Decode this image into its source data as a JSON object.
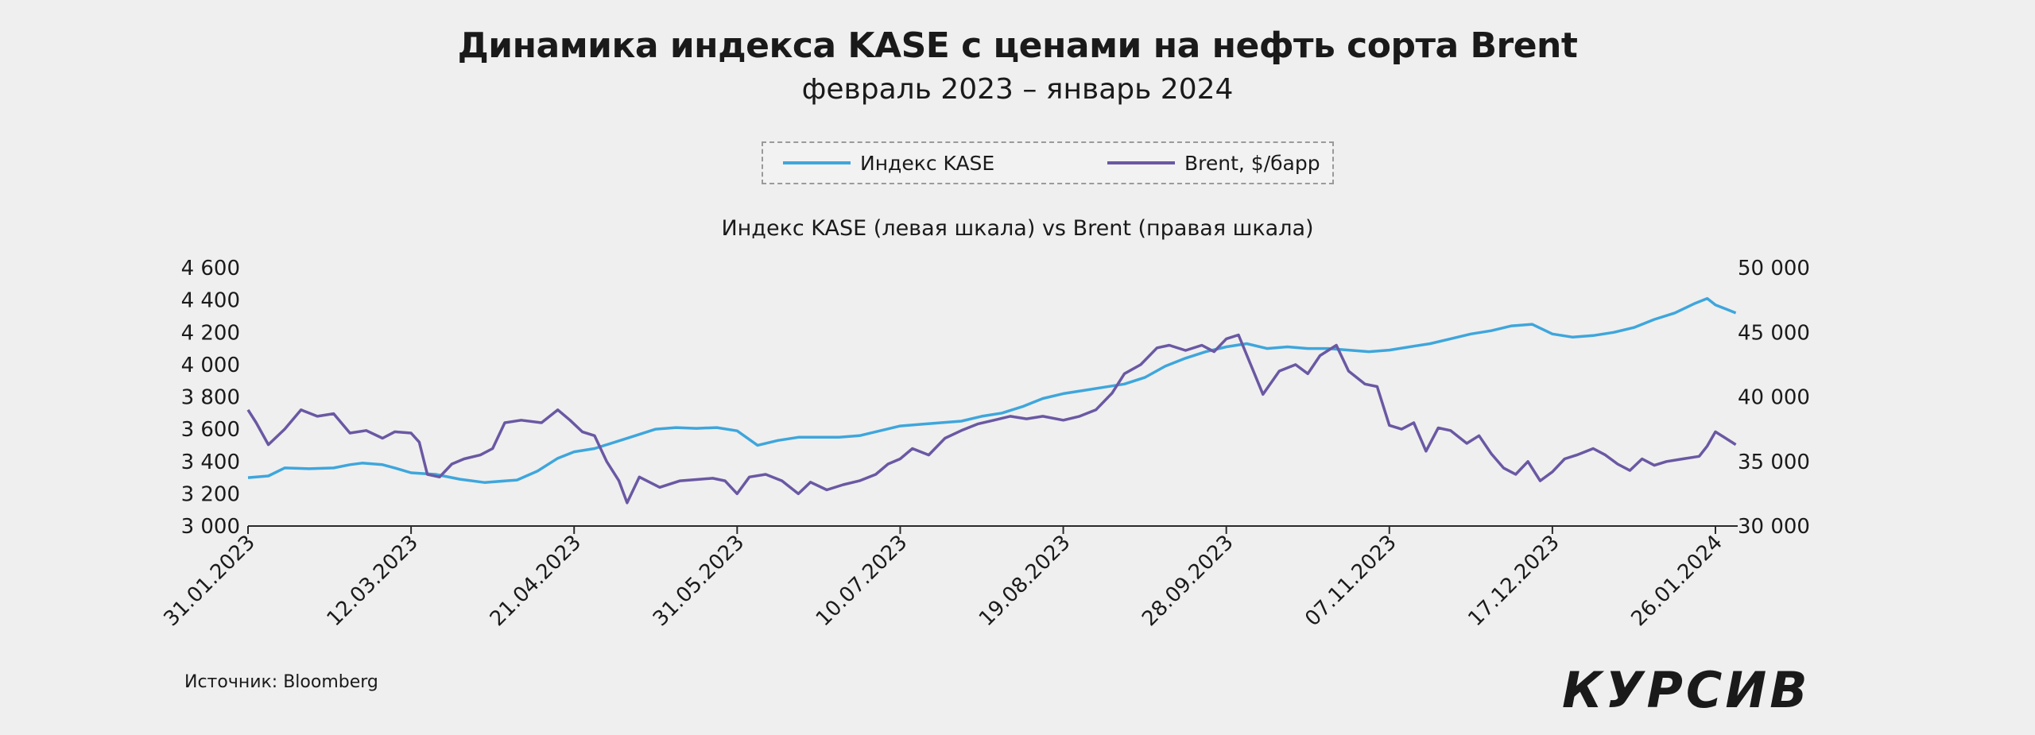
{
  "chart_data": {
    "type": "line",
    "title": "Динамика индекса KASE с ценами на нефть сорта Brent",
    "subtitle": "февраль 2023 – январь 2024",
    "caption": "Индекс KASE (левая шкала) vs Brent (правая шкала)",
    "source": "Источник: Bloomberg",
    "brand": "КУРСИВ",
    "x_tick_labels": [
      "31.01.2023",
      "12.03.2023",
      "21.04.2023",
      "31.05.2023",
      "10.07.2023",
      "19.08.2023",
      "28.09.2023",
      "07.11.2023",
      "17.12.2023",
      "26.01.2024"
    ],
    "y_left": {
      "min": 3000,
      "max": 4600,
      "ticks": [
        "3 000",
        "3 200",
        "3 400",
        "3 600",
        "3 800",
        "4 000",
        "4 200",
        "4 400",
        "4 600"
      ]
    },
    "y_right": {
      "min": 30000,
      "max": 50000,
      "ticks": [
        "30 000",
        "35 000",
        "40 000",
        "45 000",
        "50 000"
      ]
    },
    "legend_position": "top-center",
    "grid": false,
    "series": [
      {
        "name": "Индекс KASE",
        "axis": "left",
        "color": "#3ea6dc",
        "points": [
          [
            "31.01.2023",
            3300
          ],
          [
            "05.02.2023",
            3310
          ],
          [
            "09.02.2023",
            3360
          ],
          [
            "15.02.2023",
            3355
          ],
          [
            "21.02.2023",
            3360
          ],
          [
            "25.02.2023",
            3380
          ],
          [
            "28.02.2023",
            3390
          ],
          [
            "05.03.2023",
            3380
          ],
          [
            "08.03.2023",
            3360
          ],
          [
            "12.03.2023",
            3330
          ],
          [
            "18.03.2023",
            3320
          ],
          [
            "24.03.2023",
            3290
          ],
          [
            "30.03.2023",
            3270
          ],
          [
            "07.04.2023",
            3285
          ],
          [
            "12.04.2023",
            3340
          ],
          [
            "17.04.2023",
            3420
          ],
          [
            "21.04.2023",
            3460
          ],
          [
            "26.04.2023",
            3480
          ],
          [
            "01.05.2023",
            3520
          ],
          [
            "06.05.2023",
            3560
          ],
          [
            "11.05.2023",
            3600
          ],
          [
            "16.05.2023",
            3610
          ],
          [
            "21.05.2023",
            3605
          ],
          [
            "26.05.2023",
            3610
          ],
          [
            "31.05.2023",
            3590
          ],
          [
            "05.06.2023",
            3500
          ],
          [
            "10.06.2023",
            3530
          ],
          [
            "15.06.2023",
            3550
          ],
          [
            "20.06.2023",
            3550
          ],
          [
            "25.06.2023",
            3550
          ],
          [
            "30.06.2023",
            3560
          ],
          [
            "05.07.2023",
            3590
          ],
          [
            "10.07.2023",
            3620
          ],
          [
            "15.07.2023",
            3630
          ],
          [
            "20.07.2023",
            3640
          ],
          [
            "25.07.2023",
            3650
          ],
          [
            "30.07.2023",
            3680
          ],
          [
            "04.08.2023",
            3700
          ],
          [
            "09.08.2023",
            3740
          ],
          [
            "14.08.2023",
            3790
          ],
          [
            "19.08.2023",
            3820
          ],
          [
            "24.08.2023",
            3840
          ],
          [
            "29.08.2023",
            3860
          ],
          [
            "03.09.2023",
            3880
          ],
          [
            "08.09.2023",
            3920
          ],
          [
            "13.09.2023",
            3990
          ],
          [
            "18.09.2023",
            4040
          ],
          [
            "23.09.2023",
            4080
          ],
          [
            "28.09.2023",
            4110
          ],
          [
            "03.10.2023",
            4130
          ],
          [
            "08.10.2023",
            4100
          ],
          [
            "13.10.2023",
            4110
          ],
          [
            "18.10.2023",
            4100
          ],
          [
            "23.10.2023",
            4100
          ],
          [
            "28.10.2023",
            4090
          ],
          [
            "02.11.2023",
            4080
          ],
          [
            "07.11.2023",
            4090
          ],
          [
            "12.11.2023",
            4110
          ],
          [
            "17.11.2023",
            4130
          ],
          [
            "22.11.2023",
            4160
          ],
          [
            "27.11.2023",
            4190
          ],
          [
            "02.12.2023",
            4210
          ],
          [
            "07.12.2023",
            4240
          ],
          [
            "12.12.2023",
            4250
          ],
          [
            "17.12.2023",
            4190
          ],
          [
            "22.12.2023",
            4170
          ],
          [
            "27.12.2023",
            4180
          ],
          [
            "01.01.2024",
            4200
          ],
          [
            "06.01.2024",
            4230
          ],
          [
            "11.01.2024",
            4280
          ],
          [
            "16.01.2024",
            4320
          ],
          [
            "21.01.2024",
            4380
          ],
          [
            "24.01.2024",
            4410
          ],
          [
            "26.01.2024",
            4370
          ],
          [
            "29.01.2024",
            4340
          ],
          [
            "31.01.2024",
            4320
          ]
        ]
      },
      {
        "name": "Brent, $/барр",
        "axis": "right",
        "color": "#6a58a3",
        "points": [
          [
            "31.01.2023",
            39000
          ],
          [
            "02.02.2023",
            38000
          ],
          [
            "05.02.2023",
            36300
          ],
          [
            "09.02.2023",
            37500
          ],
          [
            "13.02.2023",
            39000
          ],
          [
            "17.02.2023",
            38500
          ],
          [
            "21.02.2023",
            38700
          ],
          [
            "25.02.2023",
            37200
          ],
          [
            "01.03.2023",
            37400
          ],
          [
            "05.03.2023",
            36800
          ],
          [
            "08.03.2023",
            37300
          ],
          [
            "12.03.2023",
            37200
          ],
          [
            "14.03.2023",
            36500
          ],
          [
            "16.03.2023",
            34000
          ],
          [
            "19.03.2023",
            33800
          ],
          [
            "22.03.2023",
            34800
          ],
          [
            "25.03.2023",
            35200
          ],
          [
            "29.03.2023",
            35500
          ],
          [
            "01.04.2023",
            36000
          ],
          [
            "04.04.2023",
            38000
          ],
          [
            "08.04.2023",
            38200
          ],
          [
            "13.04.2023",
            38000
          ],
          [
            "17.04.2023",
            39000
          ],
          [
            "20.04.2023",
            38200
          ],
          [
            "23.04.2023",
            37300
          ],
          [
            "26.04.2023",
            37000
          ],
          [
            "29.04.2023",
            35000
          ],
          [
            "02.05.2023",
            33500
          ],
          [
            "04.05.2023",
            31800
          ],
          [
            "07.05.2023",
            33800
          ],
          [
            "12.05.2023",
            33000
          ],
          [
            "17.05.2023",
            33500
          ],
          [
            "21.05.2023",
            33600
          ],
          [
            "25.05.2023",
            33700
          ],
          [
            "28.05.2023",
            33500
          ],
          [
            "31.05.2023",
            32500
          ],
          [
            "03.06.2023",
            33800
          ],
          [
            "07.06.2023",
            34000
          ],
          [
            "11.06.2023",
            33500
          ],
          [
            "15.06.2023",
            32500
          ],
          [
            "18.06.2023",
            33400
          ],
          [
            "22.06.2023",
            32800
          ],
          [
            "26.06.2023",
            33200
          ],
          [
            "30.06.2023",
            33500
          ],
          [
            "04.07.2023",
            34000
          ],
          [
            "07.07.2023",
            34800
          ],
          [
            "10.07.2023",
            35200
          ],
          [
            "13.07.2023",
            36000
          ],
          [
            "17.07.2023",
            35500
          ],
          [
            "21.07.2023",
            36800
          ],
          [
            "25.07.2023",
            37400
          ],
          [
            "29.07.2023",
            37900
          ],
          [
            "02.08.2023",
            38200
          ],
          [
            "06.08.2023",
            38500
          ],
          [
            "10.08.2023",
            38300
          ],
          [
            "14.08.2023",
            38500
          ],
          [
            "19.08.2023",
            38200
          ],
          [
            "23.08.2023",
            38500
          ],
          [
            "27.08.2023",
            39000
          ],
          [
            "31.08.2023",
            40300
          ],
          [
            "03.09.2023",
            41800
          ],
          [
            "07.09.2023",
            42500
          ],
          [
            "11.09.2023",
            43800
          ],
          [
            "14.09.2023",
            44000
          ],
          [
            "18.09.2023",
            43600
          ],
          [
            "22.09.2023",
            44000
          ],
          [
            "25.09.2023",
            43500
          ],
          [
            "28.09.2023",
            44500
          ],
          [
            "01.10.2023",
            44800
          ],
          [
            "04.10.2023",
            42500
          ],
          [
            "07.10.2023",
            40200
          ],
          [
            "11.10.2023",
            42000
          ],
          [
            "15.10.2023",
            42500
          ],
          [
            "18.10.2023",
            41800
          ],
          [
            "21.10.2023",
            43200
          ],
          [
            "25.10.2023",
            44000
          ],
          [
            "28.10.2023",
            42000
          ],
          [
            "01.11.2023",
            41000
          ],
          [
            "04.11.2023",
            40800
          ],
          [
            "07.11.2023",
            37800
          ],
          [
            "10.11.2023",
            37500
          ],
          [
            "13.11.2023",
            38000
          ],
          [
            "16.11.2023",
            35800
          ],
          [
            "19.11.2023",
            37600
          ],
          [
            "22.11.2023",
            37400
          ],
          [
            "26.11.2023",
            36400
          ],
          [
            "29.11.2023",
            37000
          ],
          [
            "02.12.2023",
            35600
          ],
          [
            "05.12.2023",
            34500
          ],
          [
            "08.12.2023",
            34000
          ],
          [
            "11.12.2023",
            35000
          ],
          [
            "14.12.2023",
            33500
          ],
          [
            "17.12.2023",
            34200
          ],
          [
            "20.12.2023",
            35200
          ],
          [
            "23.12.2023",
            35500
          ],
          [
            "27.12.2023",
            36000
          ],
          [
            "30.12.2023",
            35500
          ],
          [
            "02.01.2024",
            34800
          ],
          [
            "05.01.2024",
            34300
          ],
          [
            "08.01.2024",
            35200
          ],
          [
            "11.01.2024",
            34700
          ],
          [
            "14.01.2024",
            35000
          ],
          [
            "18.01.2024",
            35200
          ],
          [
            "22.01.2024",
            35400
          ],
          [
            "24.01.2024",
            36200
          ],
          [
            "26.01.2024",
            37300
          ],
          [
            "28.01.2024",
            36900
          ],
          [
            "31.01.2024",
            36300
          ]
        ]
      }
    ]
  }
}
